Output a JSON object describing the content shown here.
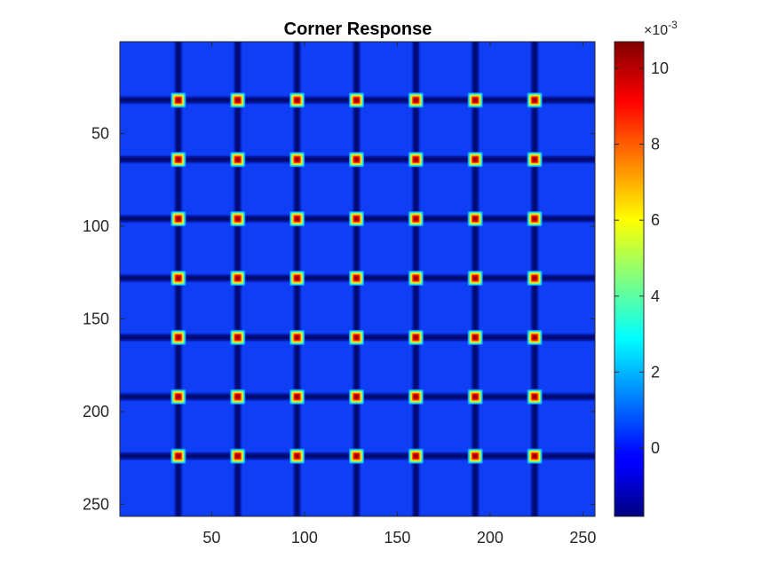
{
  "chart_data": {
    "type": "heatmap",
    "title": "Corner Response",
    "xlabel": "",
    "ylabel": "",
    "grid": false,
    "image_size": [
      256,
      256
    ],
    "x_range": [
      0.5,
      256.5
    ],
    "y_range": [
      0.5,
      256.5
    ],
    "y_direction": "reverse",
    "x_ticks": [
      50,
      100,
      150,
      200,
      250
    ],
    "y_ticks": [
      50,
      100,
      150,
      200,
      250
    ],
    "x_tick_labels": [
      "50",
      "100",
      "150",
      "200",
      "250"
    ],
    "y_tick_labels": [
      "50",
      "100",
      "150",
      "200",
      "250"
    ],
    "grid_lines_x": [
      32,
      64,
      96,
      128,
      160,
      192,
      224
    ],
    "grid_lines_y": [
      32,
      64,
      96,
      128,
      160,
      192,
      224
    ],
    "corner_peaks": {
      "x": [
        32,
        64,
        96,
        128,
        160,
        192,
        224
      ],
      "y": [
        32,
        64,
        96,
        128,
        160,
        192,
        224
      ],
      "value": 0.0105
    },
    "background_value": 0.0,
    "edge_value": -0.0015,
    "colormap": "jet",
    "colorbar": {
      "location": "right",
      "range": [
        -0.0018,
        0.0107
      ],
      "ticks": [
        0,
        2,
        4,
        6,
        8,
        10
      ],
      "tick_labels": [
        "0",
        "2",
        "4",
        "6",
        "8",
        "10"
      ],
      "exponent_base": "×10",
      "exponent_power": "-3"
    }
  }
}
